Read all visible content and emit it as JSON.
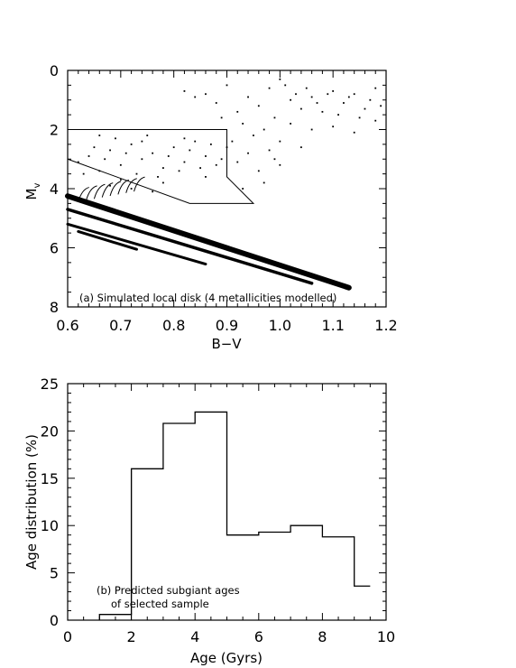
{
  "chart_data": [
    {
      "type": "scatter",
      "annotation": "(a) Simulated local disk (4 metallicities modelled)",
      "xlabel": "B−V",
      "ylabel": "M",
      "ylabel_sub": "v",
      "xlim": [
        0.6,
        1.2
      ],
      "ylim": [
        8,
        0
      ],
      "y_inverted": true,
      "x_ticks": [
        "0.6",
        "0.7",
        "0.8",
        "0.9",
        "1.0",
        "1.1",
        "1.2"
      ],
      "y_ticks": [
        "0",
        "2",
        "4",
        "6",
        "8"
      ],
      "selection_box": [
        [
          0.6,
          2.0
        ],
        [
          0.9,
          2.0
        ],
        [
          0.9,
          3.6
        ],
        [
          0.95,
          4.5
        ],
        [
          0.83,
          4.5
        ],
        [
          0.6,
          3.0
        ]
      ],
      "sequences": [
        {
          "x": [
            0.6,
            1.13
          ],
          "y": [
            4.25,
            7.35
          ]
        },
        {
          "x": [
            0.6,
            1.06
          ],
          "y": [
            4.7,
            7.2
          ]
        },
        {
          "x": [
            0.6,
            0.86
          ],
          "y": [
            5.2,
            6.55
          ]
        },
        {
          "x": [
            0.62,
            0.73
          ],
          "y": [
            5.45,
            6.05
          ]
        }
      ],
      "subgiant_points": [
        [
          0.62,
          3.1
        ],
        [
          0.64,
          2.9
        ],
        [
          0.66,
          3.4
        ],
        [
          0.68,
          2.7
        ],
        [
          0.7,
          3.2
        ],
        [
          0.72,
          2.5
        ],
        [
          0.74,
          3.0
        ],
        [
          0.76,
          2.8
        ],
        [
          0.78,
          3.3
        ],
        [
          0.8,
          2.6
        ],
        [
          0.82,
          3.1
        ],
        [
          0.84,
          2.4
        ],
        [
          0.86,
          2.9
        ],
        [
          0.88,
          3.2
        ],
        [
          0.65,
          2.6
        ],
        [
          0.67,
          3.0
        ],
        [
          0.69,
          2.3
        ],
        [
          0.71,
          2.8
        ],
        [
          0.73,
          3.5
        ],
        [
          0.75,
          2.2
        ],
        [
          0.77,
          3.6
        ],
        [
          0.79,
          2.9
        ],
        [
          0.81,
          3.4
        ],
        [
          0.83,
          2.7
        ],
        [
          0.85,
          3.3
        ],
        [
          0.87,
          2.5
        ],
        [
          0.89,
          3.0
        ],
        [
          0.63,
          3.5
        ],
        [
          0.66,
          2.2
        ],
        [
          0.7,
          3.7
        ],
        [
          0.74,
          2.4
        ],
        [
          0.78,
          3.8
        ],
        [
          0.82,
          2.3
        ],
        [
          0.86,
          3.6
        ],
        [
          0.9,
          2.6
        ],
        [
          0.92,
          3.1
        ],
        [
          0.94,
          2.8
        ],
        [
          0.96,
          3.4
        ],
        [
          0.98,
          2.7
        ],
        [
          1.0,
          3.2
        ],
        [
          0.93,
          4.0
        ],
        [
          0.97,
          3.8
        ],
        [
          0.99,
          3.0
        ],
        [
          0.91,
          2.4
        ],
        [
          0.95,
          2.2
        ],
        [
          0.68,
          3.9
        ],
        [
          0.72,
          4.0
        ],
        [
          0.76,
          4.1
        ]
      ],
      "giant_points": [
        [
          0.82,
          0.7
        ],
        [
          0.86,
          0.8
        ],
        [
          0.9,
          0.5
        ],
        [
          0.94,
          0.9
        ],
        [
          0.98,
          0.6
        ],
        [
          1.02,
          1.0
        ],
        [
          1.06,
          0.9
        ],
        [
          1.1,
          0.7
        ],
        [
          1.14,
          0.8
        ],
        [
          1.18,
          0.6
        ],
        [
          1.0,
          0.3
        ],
        [
          1.04,
          1.3
        ],
        [
          1.08,
          1.4
        ],
        [
          1.12,
          1.1
        ],
        [
          1.16,
          1.3
        ],
        [
          0.96,
          1.2
        ],
        [
          0.92,
          1.4
        ],
        [
          0.88,
          1.1
        ],
        [
          0.84,
          0.9
        ],
        [
          1.01,
          0.5
        ],
        [
          1.03,
          0.8
        ],
        [
          1.05,
          0.6
        ],
        [
          1.07,
          1.1
        ],
        [
          1.09,
          0.8
        ],
        [
          1.11,
          1.5
        ],
        [
          1.13,
          0.9
        ],
        [
          1.15,
          1.6
        ],
        [
          1.17,
          1.0
        ],
        [
          1.19,
          1.2
        ],
        [
          0.99,
          1.6
        ],
        [
          1.02,
          1.8
        ],
        [
          1.06,
          2.0
        ],
        [
          1.1,
          1.9
        ],
        [
          1.14,
          2.1
        ],
        [
          1.18,
          1.7
        ],
        [
          0.97,
          2.0
        ],
        [
          0.93,
          1.8
        ],
        [
          0.89,
          1.6
        ],
        [
          1.0,
          2.4
        ],
        [
          1.04,
          2.6
        ]
      ]
    },
    {
      "type": "bar",
      "annotation_line1": "(b) Predicted subgiant ages",
      "annotation_line2": "of selected sample",
      "xlabel": "Age (Gyrs)",
      "ylabel": "Age distribution (%)",
      "xlim": [
        0,
        10
      ],
      "ylim": [
        0,
        25
      ],
      "x_ticks": [
        "0",
        "2",
        "4",
        "6",
        "8",
        "10"
      ],
      "y_ticks": [
        "0",
        "5",
        "10",
        "15",
        "20",
        "25"
      ],
      "bin_edges": [
        1,
        2,
        3,
        4,
        5,
        6,
        7,
        8,
        9,
        9.5
      ],
      "values": [
        0.6,
        16.0,
        20.8,
        22.0,
        9.0,
        9.3,
        10.0,
        8.8,
        3.6
      ]
    }
  ]
}
